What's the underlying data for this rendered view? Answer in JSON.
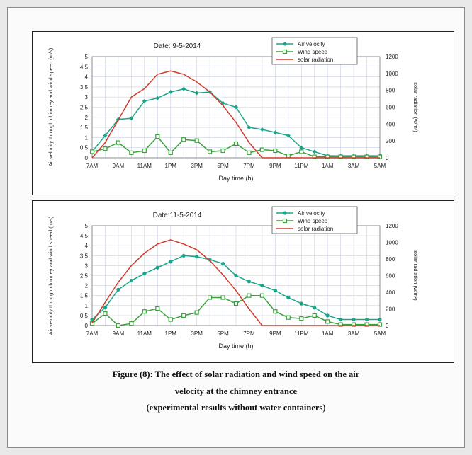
{
  "caption": {
    "line1": "Figure (8): The effect of solar radiation and wind speed on the air",
    "line2": "velocity at the chimney entrance",
    "line3": "(experimental results without water containers)"
  },
  "colors": {
    "air_velocity": "#1aa58a",
    "wind_speed": "#3aa23a",
    "solar_radiation": "#cf3b2b",
    "grid": "#c7cfe0"
  },
  "chart_data": [
    {
      "type": "line",
      "title": "Date: 9-5-2014",
      "xlabel": "Day time (h)",
      "ylabel": "Air velocity through chimney and wind speed (m/s)",
      "y2label": "solar radiation (w/m²)",
      "categories": [
        "7AM",
        "8AM",
        "9AM",
        "10AM",
        "11AM",
        "12PM",
        "1PM",
        "2PM",
        "3PM",
        "4PM",
        "5PM",
        "6PM",
        "7PM",
        "8PM",
        "9PM",
        "10PM",
        "11PM",
        "12AM",
        "1AM",
        "2AM",
        "3AM",
        "4AM",
        "5AM"
      ],
      "x_tick_labels": [
        "7AM",
        "9AM",
        "11AM",
        "1PM",
        "3PM",
        "5PM",
        "7PM",
        "9PM",
        "11PM",
        "1AM",
        "3AM",
        "5AM"
      ],
      "ylim": [
        0,
        5
      ],
      "y_ticks": [
        "0",
        "0.5",
        "1",
        "1.5",
        "2",
        "2.5",
        "3",
        "3.5",
        "4",
        "4.5",
        "5"
      ],
      "y2lim": [
        0,
        1200
      ],
      "y2_ticks": [
        "0",
        "200",
        "400",
        "600",
        "800",
        "1000",
        "1200"
      ],
      "grid": true,
      "legend_position": "top-right",
      "series": [
        {
          "name": "Air velocity",
          "axis": "left",
          "marker": "diamond",
          "values": [
            0.3,
            1.1,
            1.9,
            1.95,
            2.8,
            2.95,
            3.25,
            3.4,
            3.2,
            3.25,
            2.7,
            2.5,
            1.5,
            1.4,
            1.25,
            1.1,
            0.5,
            0.3,
            0.1,
            0.1,
            0.1,
            0.1,
            0.1
          ]
        },
        {
          "name": "Wind speed",
          "axis": "left",
          "marker": "square",
          "values": [
            0.3,
            0.45,
            0.75,
            0.25,
            0.35,
            1.05,
            0.25,
            0.9,
            0.85,
            0.3,
            0.35,
            0.7,
            0.25,
            0.4,
            0.35,
            0.1,
            0.3,
            0.05,
            0.05,
            0.05,
            0.05,
            0.05,
            0.05
          ]
        },
        {
          "name": "solar radiation",
          "axis": "right",
          "marker": "none",
          "values": [
            0,
            180,
            450,
            720,
            820,
            990,
            1030,
            990,
            900,
            780,
            620,
            420,
            180,
            0,
            0,
            0,
            0,
            0,
            0,
            0,
            0,
            0,
            0
          ]
        }
      ]
    },
    {
      "type": "line",
      "title": "Date:11-5-2014",
      "xlabel": "Day time (h)",
      "ylabel": "Air velocity through chimney and wind speed (m/s)",
      "y2label": "solar radiation (w/m²)",
      "categories": [
        "7AM",
        "8AM",
        "9AM",
        "10AM",
        "11AM",
        "12PM",
        "1PM",
        "2PM",
        "3PM",
        "4PM",
        "5PM",
        "6PM",
        "7PM",
        "8PM",
        "9PM",
        "10PM",
        "11PM",
        "12AM",
        "1AM",
        "2AM",
        "3AM",
        "4AM",
        "5AM"
      ],
      "x_tick_labels": [
        "7AM",
        "9AM",
        "11AM",
        "1PM",
        "3PM",
        "5PM",
        "7PM",
        "9PM",
        "11PM",
        "1AM",
        "3AM",
        "5AM"
      ],
      "ylim": [
        0,
        5
      ],
      "y_ticks": [
        "0",
        "0.5",
        "1",
        "1.5",
        "2",
        "2.5",
        "3",
        "3.5",
        "4",
        "4.5",
        "5"
      ],
      "y2lim": [
        0,
        1200
      ],
      "y2_ticks": [
        "0",
        "200",
        "400",
        "600",
        "800",
        "1000",
        "1200"
      ],
      "grid": true,
      "legend_position": "top-right",
      "series": [
        {
          "name": "Air velocity",
          "axis": "left",
          "marker": "circle",
          "values": [
            0.3,
            0.9,
            1.8,
            2.25,
            2.6,
            2.9,
            3.2,
            3.5,
            3.45,
            3.3,
            3.1,
            2.5,
            2.2,
            2.0,
            1.75,
            1.4,
            1.1,
            0.9,
            0.5,
            0.3,
            0.3,
            0.3,
            0.3
          ]
        },
        {
          "name": "Wind speed",
          "axis": "left",
          "marker": "square",
          "values": [
            0.1,
            0.6,
            0.0,
            0.1,
            0.7,
            0.85,
            0.3,
            0.5,
            0.65,
            1.4,
            1.4,
            1.1,
            1.5,
            1.5,
            0.7,
            0.4,
            0.35,
            0.5,
            0.2,
            0.05,
            0.05,
            0.05,
            0.05
          ]
        },
        {
          "name": "solar radiation",
          "axis": "right",
          "marker": "none",
          "values": [
            30,
            280,
            520,
            720,
            870,
            980,
            1030,
            980,
            910,
            780,
            610,
            420,
            200,
            0,
            0,
            0,
            0,
            0,
            0,
            0,
            0,
            0,
            0
          ]
        }
      ]
    }
  ]
}
